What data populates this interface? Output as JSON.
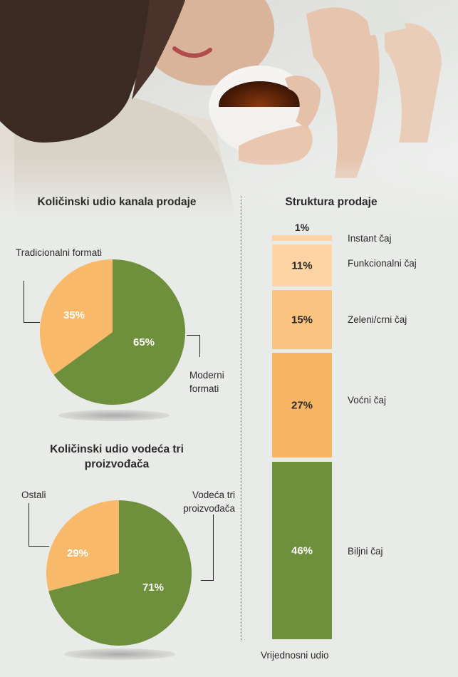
{
  "chart_data": [
    {
      "type": "pie",
      "title": "Količinski udio kanala prodaje",
      "slices": [
        {
          "label": "Moderni formati",
          "value": 65,
          "display": "65%",
          "color": "#6e8f3b"
        },
        {
          "label": "Tradicionalni formati",
          "value": 35,
          "display": "35%",
          "color": "#f8b96a"
        }
      ]
    },
    {
      "type": "pie",
      "title": "Količinski udio vodeća tri proizvođača",
      "slices": [
        {
          "label": "Vodeća tri proizvođača",
          "value": 71,
          "display": "71%",
          "color": "#6e8f3b"
        },
        {
          "label": "Ostali",
          "value": 29,
          "display": "29%",
          "color": "#f8b96a"
        }
      ]
    },
    {
      "type": "bar",
      "title": "Struktura prodaje",
      "xlabel": "Vrijednosni udio",
      "stacked": true,
      "categories": [
        "Instant čaj",
        "Funkcionalni čaj",
        "Zeleni/crni čaj",
        "Voćni čaj",
        "Biljni čaj"
      ],
      "values": [
        1,
        11,
        15,
        27,
        46
      ],
      "labels": [
        "1%",
        "11%",
        "15%",
        "27%",
        "46%"
      ],
      "colors": [
        "#fcd3a2",
        "#fdd5a4",
        "#fcc483",
        "#f8b564",
        "#6e8f3b"
      ]
    }
  ]
}
